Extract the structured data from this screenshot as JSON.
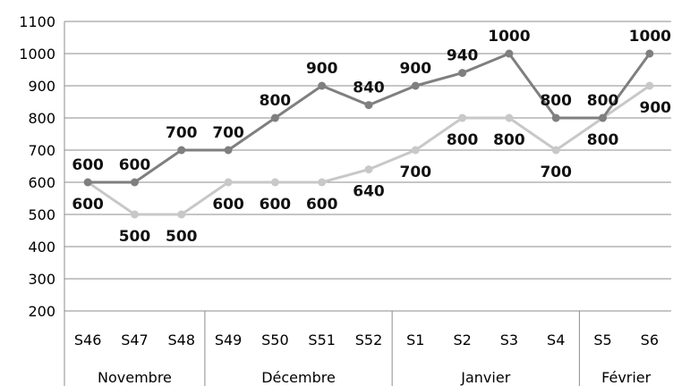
{
  "chart_data": {
    "type": "line",
    "ylim": [
      200,
      1100
    ],
    "yticks": [
      200,
      300,
      400,
      500,
      600,
      700,
      800,
      900,
      1000,
      1100
    ],
    "categories": [
      "S46",
      "S47",
      "S48",
      "S49",
      "S50",
      "S51",
      "S52",
      "S1",
      "S2",
      "S3",
      "S4",
      "S5",
      "S6"
    ],
    "groups": [
      {
        "label": "Novembre",
        "size": 3
      },
      {
        "label": "Décembre",
        "size": 4
      },
      {
        "label": "Janvier",
        "size": 4
      },
      {
        "label": "Février",
        "size": 2
      }
    ],
    "series": [
      {
        "values": [
          600,
          600,
          700,
          700,
          800,
          900,
          840,
          900,
          940,
          1000,
          800,
          800,
          1000
        ],
        "color": "#7f7f7f",
        "labels_above": true
      },
      {
        "values": [
          600,
          500,
          500,
          600,
          600,
          600,
          640,
          700,
          800,
          800,
          700,
          800,
          900
        ],
        "color": "#c8c8c8",
        "labels_above": false
      }
    ],
    "grid": true,
    "legend": "none"
  }
}
